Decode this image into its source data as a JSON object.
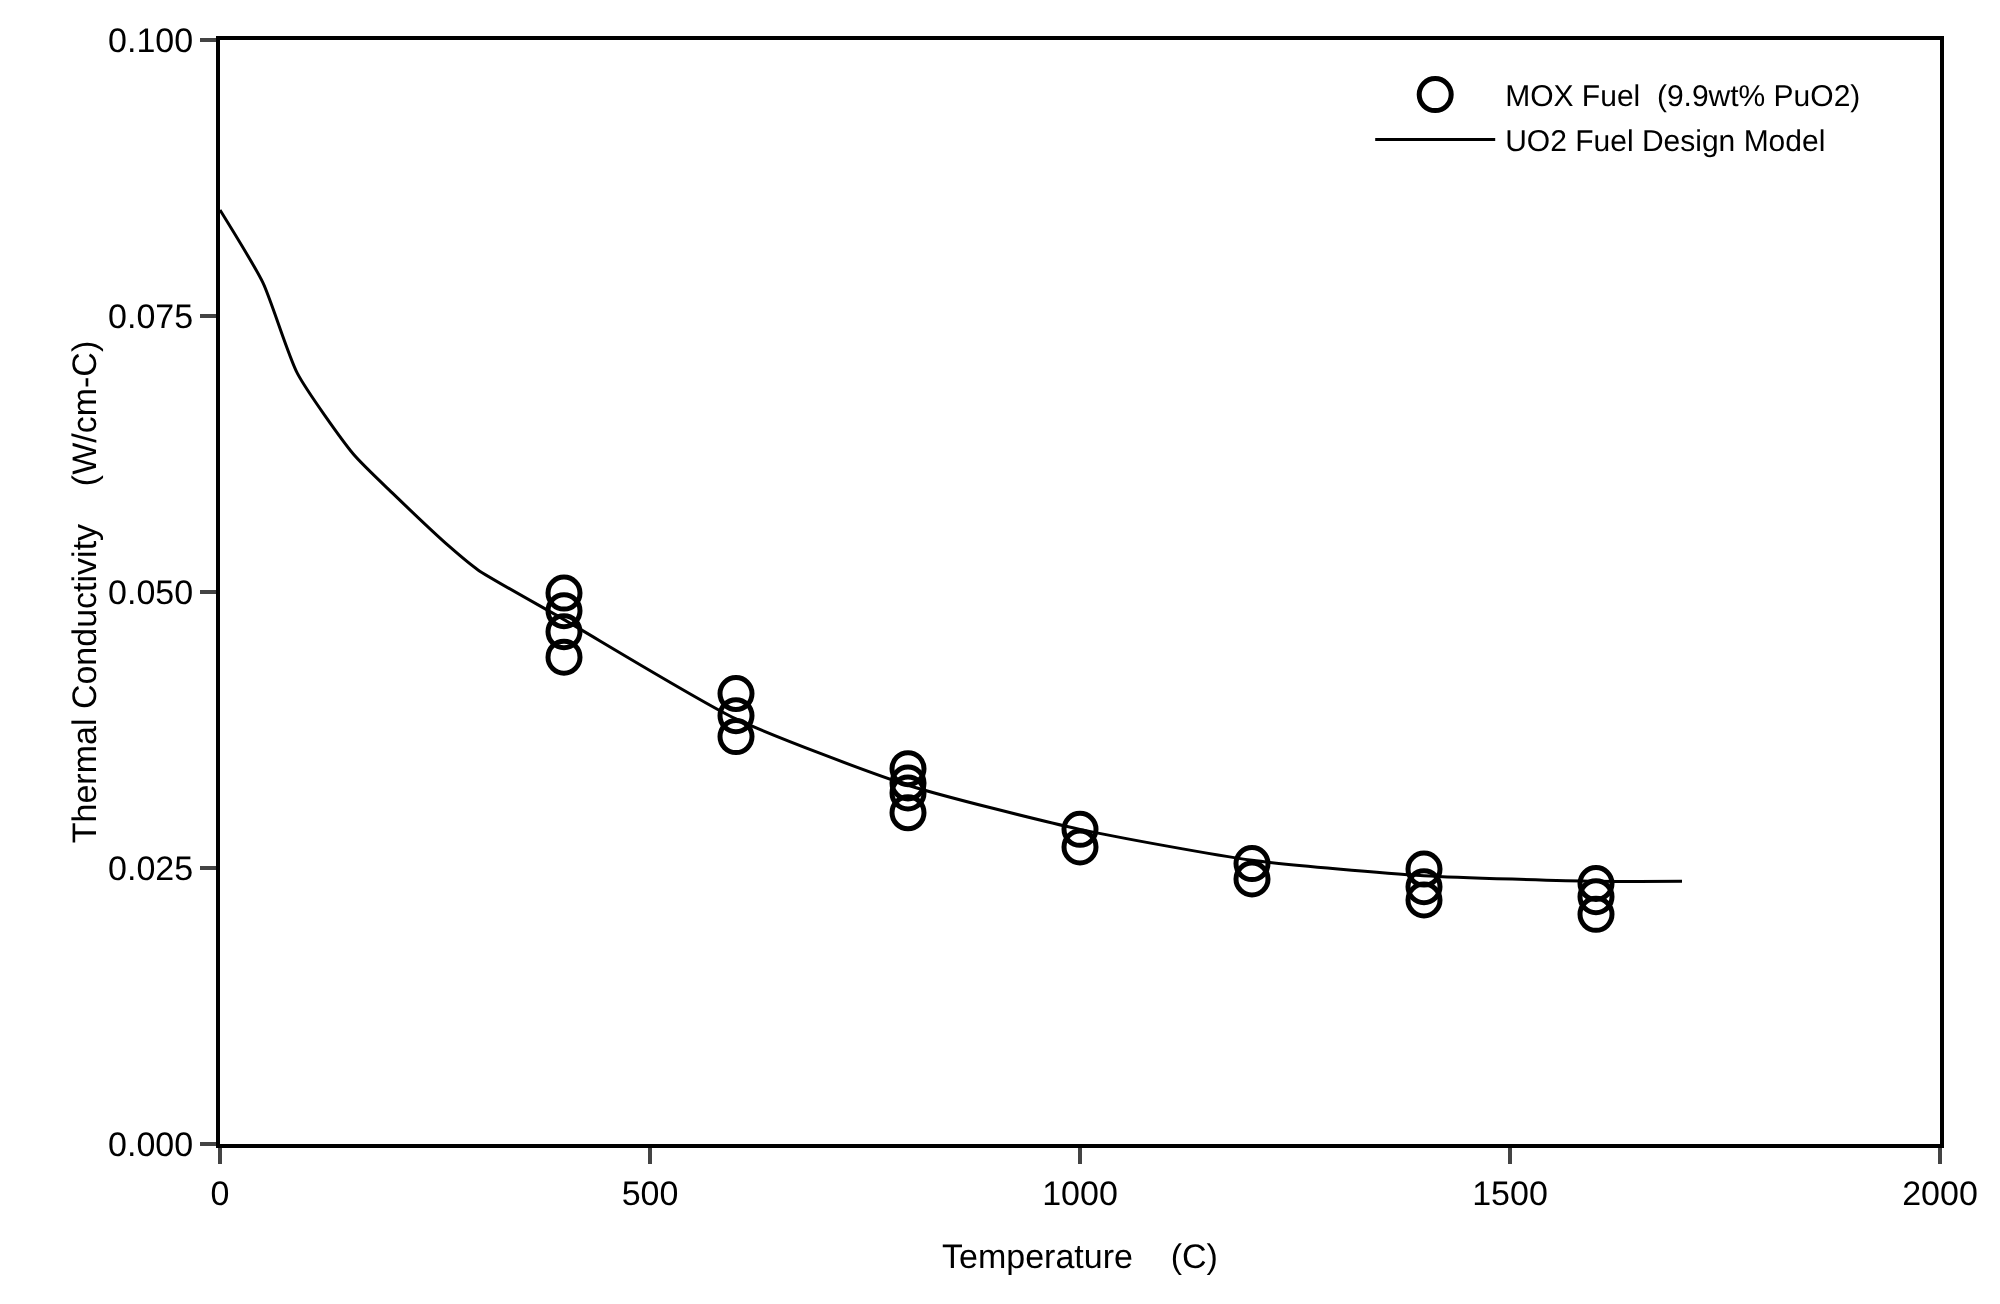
{
  "chart_data": {
    "type": "scatter",
    "xlabel": "Temperature    (C)",
    "ylabel": "Thermal Conductivity    (W/cm-C)",
    "xlim": [
      0,
      2000
    ],
    "xticks": [
      0,
      500,
      1000,
      1500,
      2000
    ],
    "ylim": [
      0,
      0.1
    ],
    "yticks": [
      {
        "value": 0,
        "label": "0.000"
      },
      {
        "value": 0.025,
        "label": "0.025"
      },
      {
        "value": 0.05,
        "label": "0.050"
      },
      {
        "value": 0.075,
        "label": "0.075"
      },
      {
        "value": 0.1,
        "label": "0.100"
      }
    ],
    "grid": false,
    "legend": "top right",
    "series": [
      {
        "name": "MOX Fuel  (9.9wt% PuO2)",
        "marker": "circle",
        "color": "#000000",
        "x": [
          400,
          400,
          400,
          400,
          600,
          600,
          600,
          800,
          800,
          800,
          800,
          1000,
          1000,
          1200,
          1200,
          1400,
          1400,
          1400,
          1600,
          1600,
          1600
        ],
        "values": [
          0.0499,
          0.0483,
          0.0464,
          0.0441,
          0.0408,
          0.0388,
          0.0369,
          0.034,
          0.0327,
          0.0318,
          0.03,
          0.0285,
          0.0269,
          0.0254,
          0.024,
          0.0249,
          0.0233,
          0.0221,
          0.0236,
          0.0224,
          0.0208
        ]
      },
      {
        "name": "UO2 Fuel Design Model",
        "type": "line",
        "marker": "none",
        "line_style": "solid",
        "color": "#000000",
        "x": [
          0,
          50,
          90,
          155,
          200,
          267,
          300,
          400,
          600,
          800,
          1000,
          1200,
          1400,
          1600,
          1700
        ],
        "values": [
          0.0846,
          0.078,
          0.0698,
          0.0625,
          0.059,
          0.0541,
          0.052,
          0.0475,
          0.0385,
          0.0325,
          0.0285,
          0.0257,
          0.0243,
          0.0238,
          0.0238
        ]
      }
    ]
  }
}
